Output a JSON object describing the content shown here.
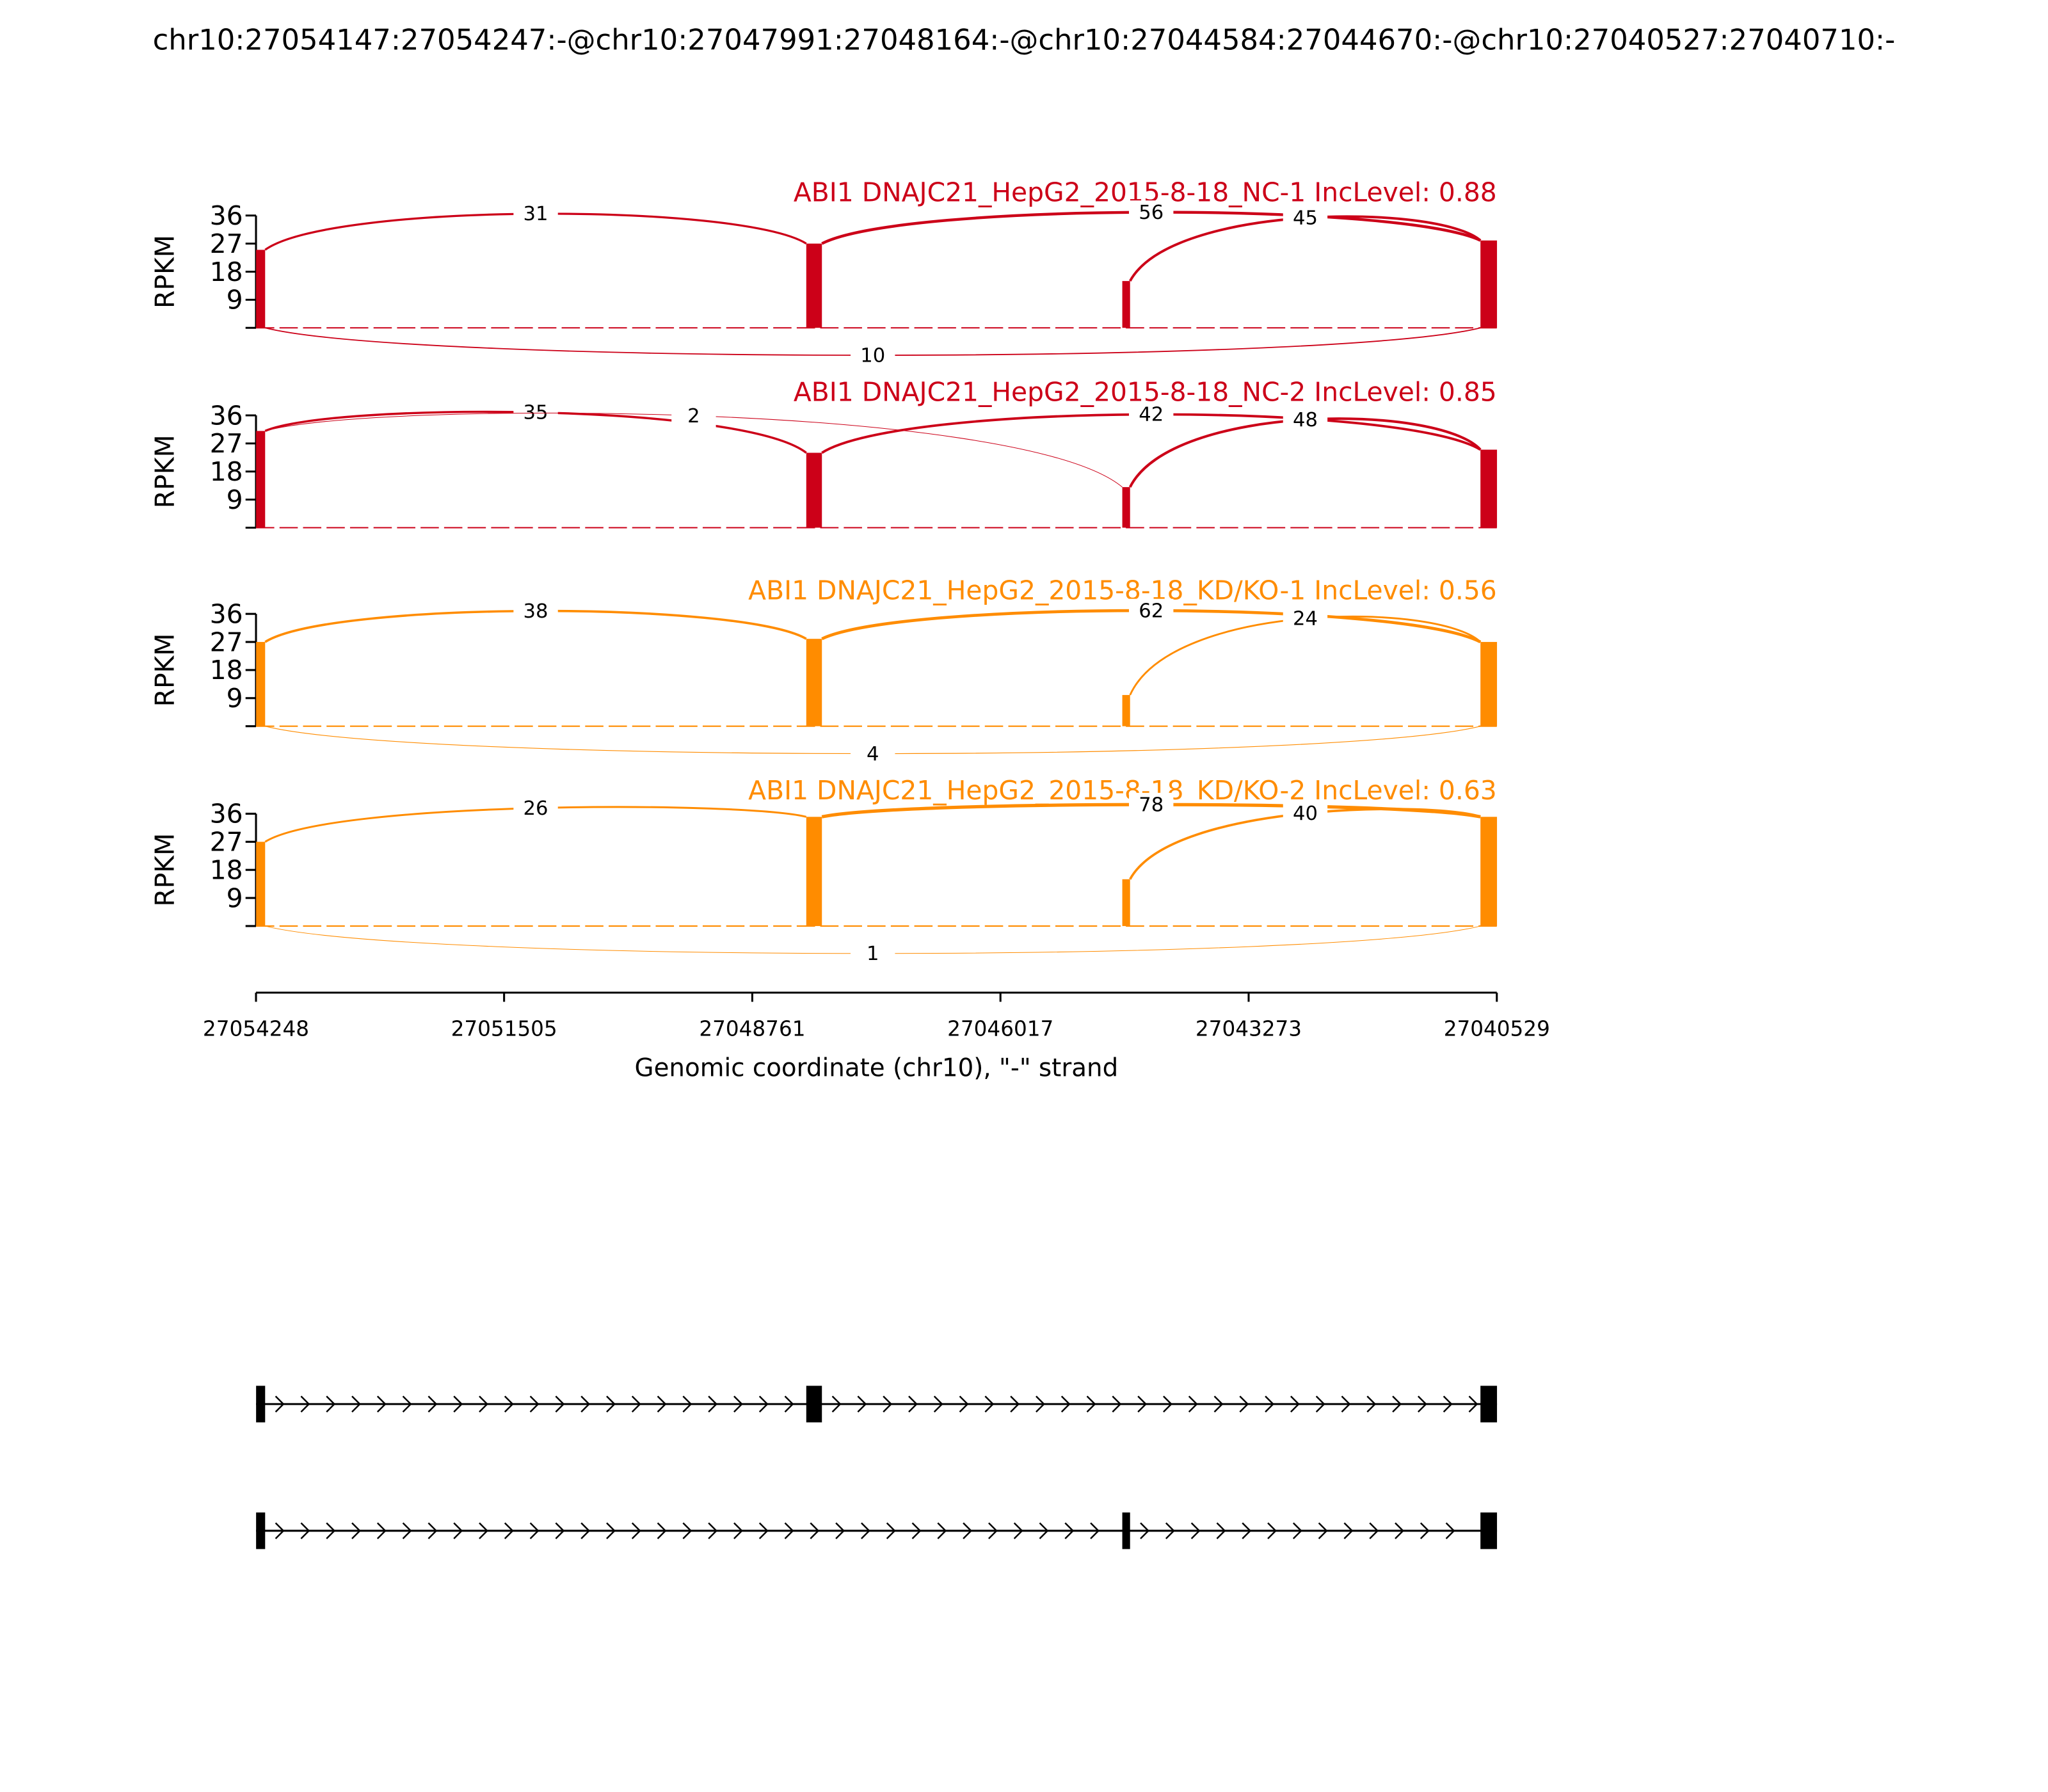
{
  "chart_data": {
    "type": "sashimi",
    "title": "chr10:27054147:27054247:-@chr10:27047991:27048164:-@chr10:27044584:27044670:-@chr10:27040527:27040710:-",
    "xlabel": "Genomic coordinate (chr10), \"-\" strand",
    "xlim": [
      27054248,
      27040529
    ],
    "xticks": [
      27054248,
      27051505,
      27048761,
      27046017,
      27043273,
      27040529
    ],
    "exons": [
      [
        27054247,
        27054147
      ],
      [
        27048164,
        27047991
      ],
      [
        27044670,
        27044584
      ],
      [
        27040710,
        27040527
      ]
    ],
    "tracks": [
      {
        "label": "ABI1 DNAJC21_HepG2_2015-8-18_NC-1 IncLevel: 0.88",
        "color": "#cc0018",
        "ylabel": "RPKM",
        "ylim": [
          0,
          36
        ],
        "yticks": [
          9,
          18,
          27,
          36
        ],
        "coverage": [
          25,
          27,
          15,
          28
        ],
        "junctions": [
          {
            "from": 27054147,
            "to": 27048164,
            "count": 31,
            "side": "above"
          },
          {
            "from": 27047991,
            "to": 27040710,
            "count": 56,
            "side": "above"
          },
          {
            "from": 27044584,
            "to": 27040710,
            "count": 45,
            "side": "above"
          },
          {
            "from": 27054147,
            "to": 27040710,
            "count": 10,
            "side": "below"
          }
        ]
      },
      {
        "label": "ABI1 DNAJC21_HepG2_2015-8-18_NC-2 IncLevel: 0.85",
        "color": "#cc0018",
        "ylabel": "RPKM",
        "ylim": [
          0,
          36
        ],
        "yticks": [
          9,
          18,
          27,
          36
        ],
        "coverage": [
          31,
          24,
          13,
          25
        ],
        "junctions": [
          {
            "from": 27054147,
            "to": 27048164,
            "count": 35,
            "side": "above"
          },
          {
            "from": 27054147,
            "to": 27044670,
            "count": 2,
            "side": "above"
          },
          {
            "from": 27047991,
            "to": 27040710,
            "count": 42,
            "side": "above"
          },
          {
            "from": 27044584,
            "to": 27040710,
            "count": 48,
            "side": "above"
          }
        ]
      },
      {
        "label": "ABI1 DNAJC21_HepG2_2015-8-18_KD/KO-1 IncLevel: 0.56",
        "color": "#ff8c00",
        "ylabel": "RPKM",
        "ylim": [
          0,
          36
        ],
        "yticks": [
          9,
          18,
          27,
          36
        ],
        "coverage": [
          27,
          28,
          10,
          27
        ],
        "junctions": [
          {
            "from": 27054147,
            "to": 27048164,
            "count": 38,
            "side": "above"
          },
          {
            "from": 27047991,
            "to": 27040710,
            "count": 62,
            "side": "above"
          },
          {
            "from": 27044584,
            "to": 27040710,
            "count": 24,
            "side": "above"
          },
          {
            "from": 27054147,
            "to": 27040710,
            "count": 4,
            "side": "below"
          }
        ]
      },
      {
        "label": "ABI1 DNAJC21_HepG2_2015-8-18_KD/KO-2 IncLevel: 0.63",
        "color": "#ff8c00",
        "ylabel": "RPKM",
        "ylim": [
          0,
          36
        ],
        "yticks": [
          9,
          18,
          27,
          36
        ],
        "coverage": [
          27,
          35,
          15,
          35
        ],
        "junctions": [
          {
            "from": 27054147,
            "to": 27048164,
            "count": 26,
            "side": "above"
          },
          {
            "from": 27047991,
            "to": 27040710,
            "count": 78,
            "side": "above"
          },
          {
            "from": 27044584,
            "to": 27040710,
            "count": 40,
            "side": "above"
          },
          {
            "from": 27054147,
            "to": 27040710,
            "count": 1,
            "side": "below"
          }
        ]
      }
    ],
    "transcripts": [
      {
        "exons": [
          [
            27054247,
            27054147
          ],
          [
            27048164,
            27047991
          ],
          [
            27040710,
            27040527
          ]
        ]
      },
      {
        "exons": [
          [
            27054247,
            27054147
          ],
          [
            27044670,
            27044584
          ],
          [
            27040710,
            27040527
          ]
        ]
      }
    ]
  }
}
